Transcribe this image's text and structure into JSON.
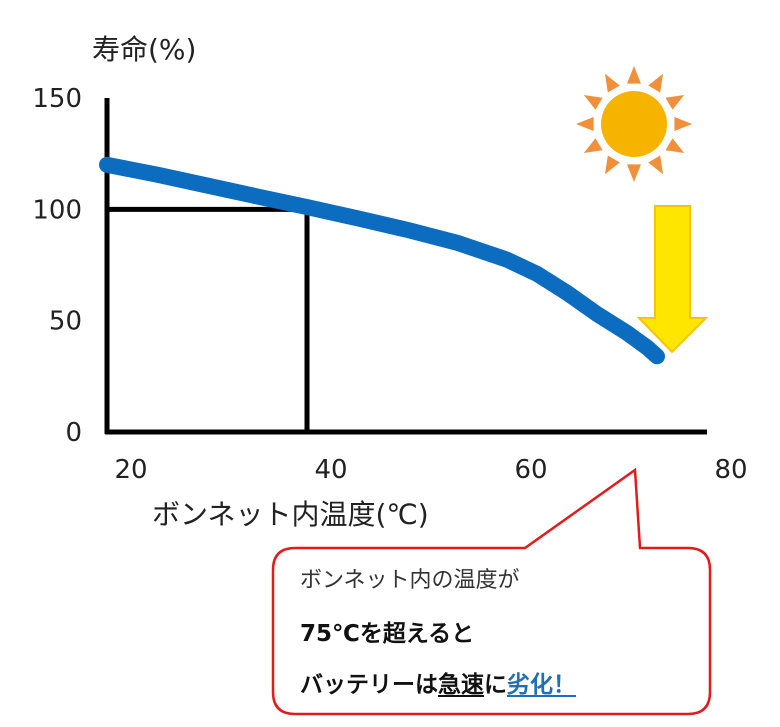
{
  "chart_data": {
    "type": "line",
    "ylabel": "寿命(%)",
    "xlabel": "ボンネット内温度(℃)",
    "x_ticks": [
      20,
      40,
      60,
      80
    ],
    "y_ticks": [
      0,
      50,
      100,
      150
    ],
    "xlim": [
      20,
      80
    ],
    "ylim": [
      0,
      150
    ],
    "grid": false,
    "series": [
      {
        "x": [
          20,
          25,
          30,
          35,
          40,
          45,
          50,
          55,
          60,
          63,
          66,
          69,
          72,
          74,
          75
        ],
        "y": [
          120,
          115.6,
          110.7,
          105.8,
          101,
          96,
          90.8,
          85,
          77.4,
          71,
          62.5,
          53,
          44.5,
          38,
          34
        ],
        "color": "#0b6cc0"
      }
    ],
    "reference_point": {
      "x": 40,
      "y": 100
    }
  },
  "colors": {
    "curve": "#0b6cc0",
    "callout_border": "#e01c1c",
    "sun_core": "#f6b400",
    "sun_rays": "#f0903a",
    "arrow_fill": "#ffe600",
    "arrow_border": "#f5c400",
    "accent_text": "#1f6fb5"
  },
  "icons": {
    "sun": "sun-icon",
    "arrow": "down-arrow-icon"
  },
  "callout": {
    "line1": "ボンネット内の温度が",
    "line2": "75℃を超えると",
    "line3_prefix": "バッテリーは",
    "line3_underlined": "急速",
    "line3_mid": "に",
    "line3_highlight": "劣化！"
  }
}
